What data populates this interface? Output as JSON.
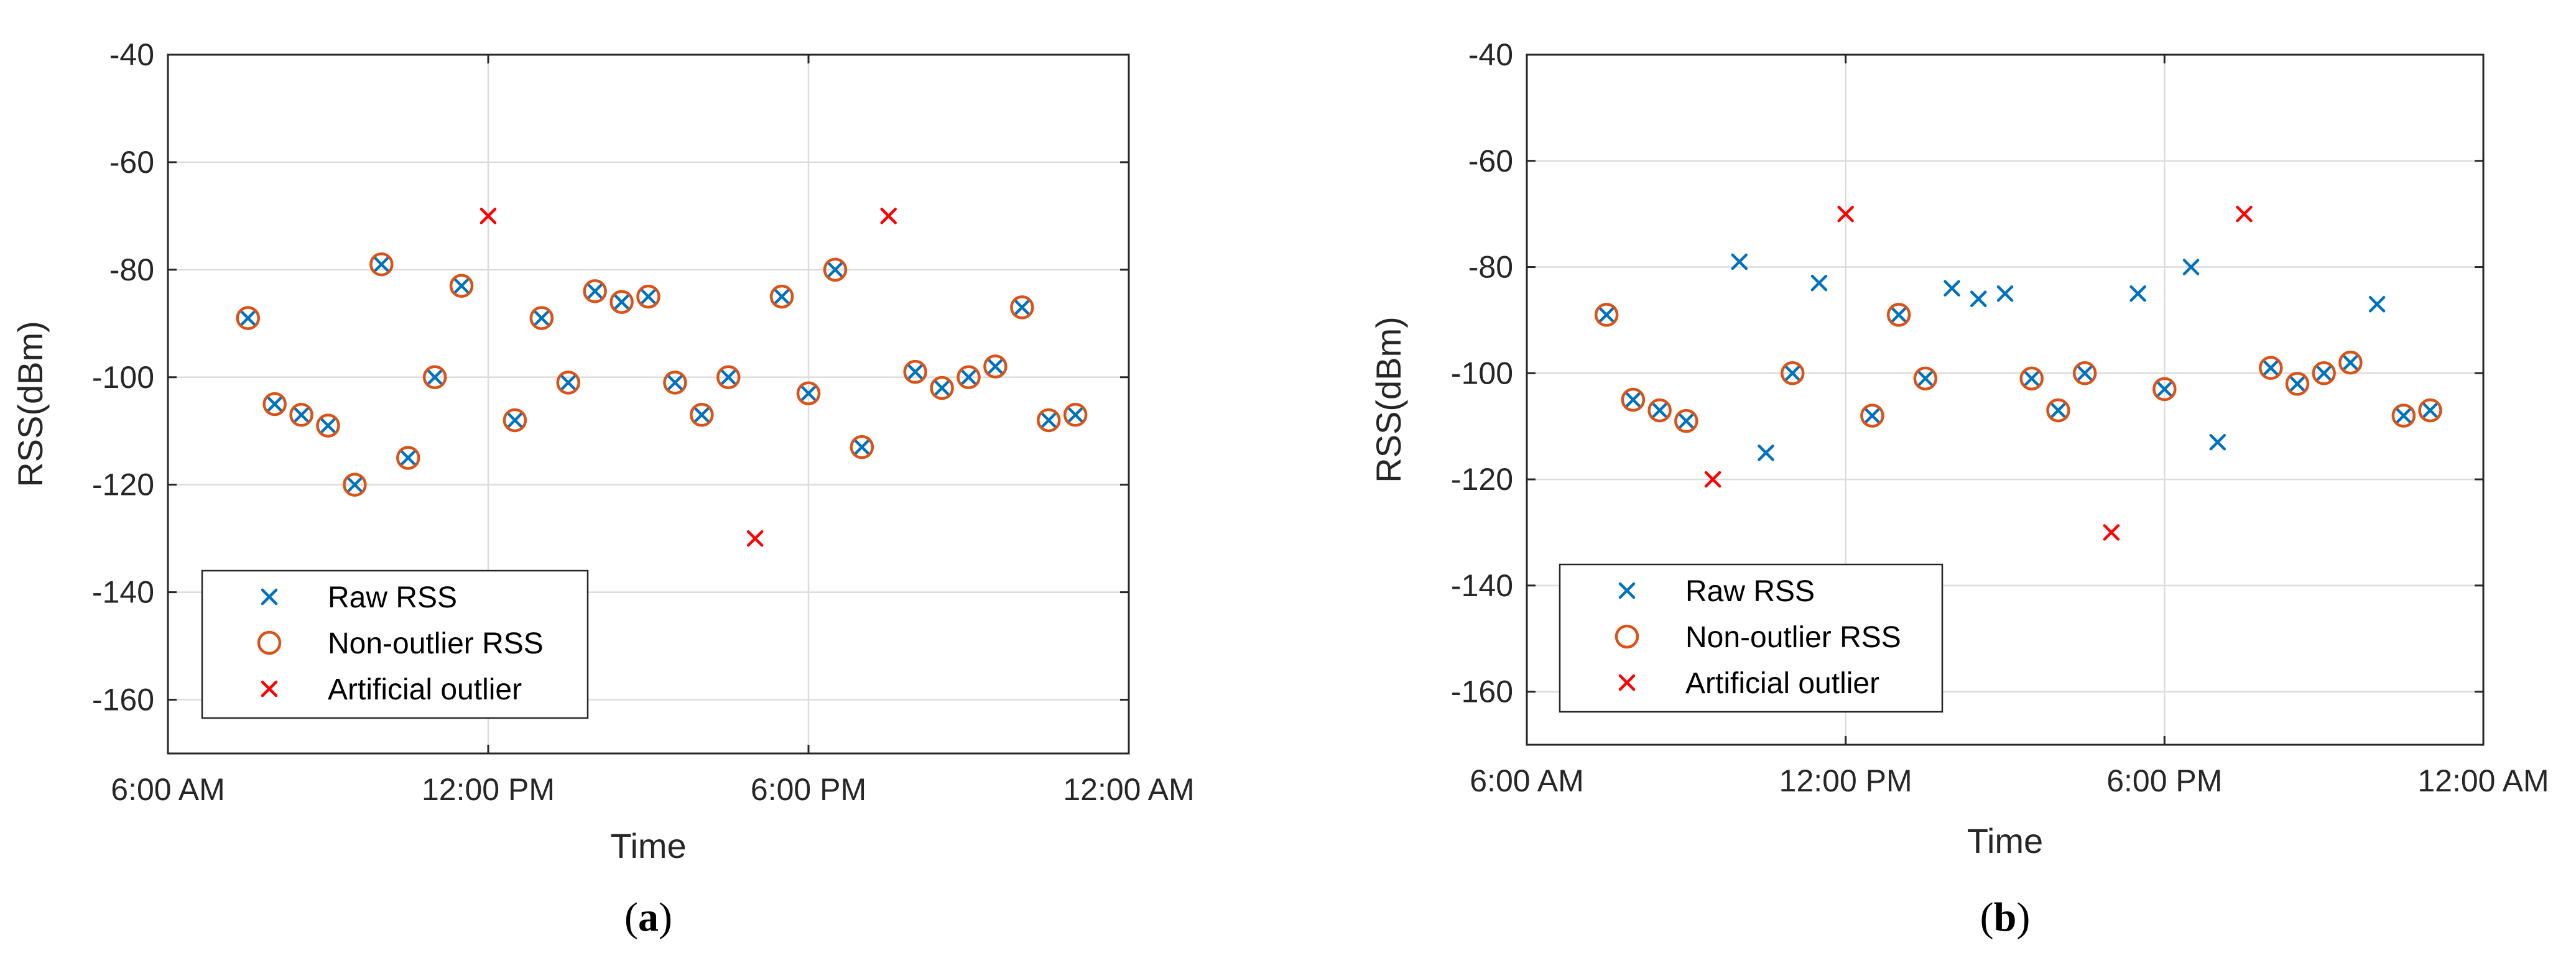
{
  "chart_data": [
    {
      "type": "scatter",
      "caption": {
        "open": "(",
        "letter": "a",
        "close": ")"
      },
      "xlabel": "Time",
      "ylabel": "RSS(dBm)",
      "xlim": [
        6,
        24
      ],
      "ylim": [
        -170,
        -40
      ],
      "grid": true,
      "xticks": [
        {
          "value": 6,
          "label": "6:00 AM"
        },
        {
          "value": 12,
          "label": "12:00 PM"
        },
        {
          "value": 18,
          "label": "6:00 PM"
        },
        {
          "value": 24,
          "label": "12:00 AM"
        }
      ],
      "yticks": [
        -40,
        -60,
        -80,
        -100,
        -120,
        -140,
        -160
      ],
      "legend": {
        "location": "bottom-left",
        "entries": [
          {
            "label": "Raw RSS",
            "marker": "x",
            "color": "#0072BD"
          },
          {
            "label": "Non-outlier RSS",
            "marker": "o",
            "color": "#D95319"
          },
          {
            "label": "Artificial outlier",
            "marker": "x",
            "color": "#FF0000"
          }
        ]
      },
      "series": [
        {
          "name": "Raw RSS",
          "marker": "x",
          "color": "#0072BD",
          "points": [
            [
              7.5,
              -89
            ],
            [
              8.0,
              -105
            ],
            [
              8.5,
              -107
            ],
            [
              9.0,
              -109
            ],
            [
              9.5,
              -120
            ],
            [
              10.0,
              -79
            ],
            [
              10.5,
              -115
            ],
            [
              11.0,
              -100
            ],
            [
              11.5,
              -83
            ],
            [
              12.5,
              -108
            ],
            [
              13.0,
              -89
            ],
            [
              13.5,
              -101
            ],
            [
              14.0,
              -84
            ],
            [
              14.5,
              -86
            ],
            [
              15.0,
              -85
            ],
            [
              15.5,
              -101
            ],
            [
              16.0,
              -107
            ],
            [
              16.5,
              -100
            ],
            [
              17.5,
              -85
            ],
            [
              18.0,
              -103
            ],
            [
              18.5,
              -80
            ],
            [
              19.0,
              -113
            ],
            [
              20.0,
              -99
            ],
            [
              20.5,
              -102
            ],
            [
              21.0,
              -100
            ],
            [
              21.5,
              -98
            ],
            [
              22.0,
              -87
            ],
            [
              22.5,
              -108
            ],
            [
              23.0,
              -107
            ]
          ]
        },
        {
          "name": "Non-outlier RSS",
          "marker": "o",
          "color": "#D95319",
          "points": [
            [
              7.5,
              -89
            ],
            [
              8.0,
              -105
            ],
            [
              8.5,
              -107
            ],
            [
              9.0,
              -109
            ],
            [
              9.5,
              -120
            ],
            [
              10.0,
              -79
            ],
            [
              10.5,
              -115
            ],
            [
              11.0,
              -100
            ],
            [
              11.5,
              -83
            ],
            [
              12.5,
              -108
            ],
            [
              13.0,
              -89
            ],
            [
              13.5,
              -101
            ],
            [
              14.0,
              -84
            ],
            [
              14.5,
              -86
            ],
            [
              15.0,
              -85
            ],
            [
              15.5,
              -101
            ],
            [
              16.0,
              -107
            ],
            [
              16.5,
              -100
            ],
            [
              17.5,
              -85
            ],
            [
              18.0,
              -103
            ],
            [
              18.5,
              -80
            ],
            [
              19.0,
              -113
            ],
            [
              20.0,
              -99
            ],
            [
              20.5,
              -102
            ],
            [
              21.0,
              -100
            ],
            [
              21.5,
              -98
            ],
            [
              22.0,
              -87
            ],
            [
              22.5,
              -108
            ],
            [
              23.0,
              -107
            ]
          ]
        },
        {
          "name": "Artificial outlier",
          "marker": "x",
          "color": "#FF0000",
          "points": [
            [
              12.0,
              -70
            ],
            [
              17.0,
              -130
            ],
            [
              19.5,
              -70
            ]
          ]
        }
      ]
    },
    {
      "type": "scatter",
      "caption": {
        "open": "(",
        "letter": "b",
        "close": ")"
      },
      "xlabel": "Time",
      "ylabel": "RSS(dBm)",
      "xlim": [
        6,
        24
      ],
      "ylim": [
        -170,
        -40
      ],
      "grid": true,
      "xticks": [
        {
          "value": 6,
          "label": "6:00 AM"
        },
        {
          "value": 12,
          "label": "12:00 PM"
        },
        {
          "value": 18,
          "label": "6:00 PM"
        },
        {
          "value": 24,
          "label": "12:00 AM"
        }
      ],
      "yticks": [
        -40,
        -60,
        -80,
        -100,
        -120,
        -140,
        -160
      ],
      "legend": {
        "location": "bottom-left",
        "entries": [
          {
            "label": "Raw RSS",
            "marker": "x",
            "color": "#0072BD"
          },
          {
            "label": "Non-outlier RSS",
            "marker": "o",
            "color": "#D95319"
          },
          {
            "label": "Artificial outlier",
            "marker": "x",
            "color": "#FF0000"
          }
        ]
      },
      "series": [
        {
          "name": "Raw RSS",
          "marker": "x",
          "color": "#0072BD",
          "points": [
            [
              7.5,
              -89
            ],
            [
              8.0,
              -105
            ],
            [
              8.5,
              -107
            ],
            [
              9.0,
              -109
            ],
            [
              10.0,
              -79
            ],
            [
              10.5,
              -115
            ],
            [
              11.0,
              -100
            ],
            [
              11.5,
              -83
            ],
            [
              12.5,
              -108
            ],
            [
              13.0,
              -89
            ],
            [
              13.5,
              -101
            ],
            [
              14.0,
              -84
            ],
            [
              14.5,
              -86
            ],
            [
              15.0,
              -85
            ],
            [
              15.5,
              -101
            ],
            [
              16.0,
              -107
            ],
            [
              16.5,
              -100
            ],
            [
              17.5,
              -85
            ],
            [
              18.0,
              -103
            ],
            [
              18.5,
              -80
            ],
            [
              19.0,
              -113
            ],
            [
              20.0,
              -99
            ],
            [
              20.5,
              -102
            ],
            [
              21.0,
              -100
            ],
            [
              21.5,
              -98
            ],
            [
              22.0,
              -87
            ],
            [
              22.5,
              -108
            ],
            [
              23.0,
              -107
            ]
          ]
        },
        {
          "name": "Non-outlier RSS",
          "marker": "o",
          "color": "#D95319",
          "points": [
            [
              7.5,
              -89
            ],
            [
              8.0,
              -105
            ],
            [
              8.5,
              -107
            ],
            [
              9.0,
              -109
            ],
            [
              11.0,
              -100
            ],
            [
              12.5,
              -108
            ],
            [
              13.0,
              -89
            ],
            [
              13.5,
              -101
            ],
            [
              15.5,
              -101
            ],
            [
              16.0,
              -107
            ],
            [
              16.5,
              -100
            ],
            [
              18.0,
              -103
            ],
            [
              20.0,
              -99
            ],
            [
              20.5,
              -102
            ],
            [
              21.0,
              -100
            ],
            [
              21.5,
              -98
            ],
            [
              22.5,
              -108
            ],
            [
              23.0,
              -107
            ]
          ]
        },
        {
          "name": "Artificial outlier",
          "marker": "x",
          "color": "#FF0000",
          "points": [
            [
              9.5,
              -120
            ],
            [
              12.0,
              -70
            ],
            [
              17.0,
              -130
            ],
            [
              19.5,
              -70
            ]
          ]
        }
      ]
    }
  ]
}
